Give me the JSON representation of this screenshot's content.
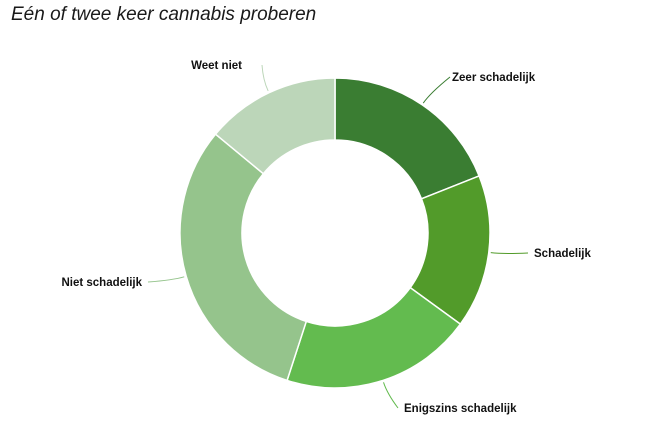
{
  "title": "Eén of twee keer cannabis proberen",
  "chart_data": {
    "type": "pie",
    "donut": true,
    "title": "Eén of twee keer cannabis proberen",
    "slices": [
      {
        "label": "Zeer schadelijk",
        "value": 19,
        "color": "#3a7d32"
      },
      {
        "label": "Schadelijk",
        "value": 16,
        "color": "#529b2a"
      },
      {
        "label": "Enigszins schadelijk",
        "value": 20,
        "color": "#63bb4f"
      },
      {
        "label": "Niet schadelijk",
        "value": 31,
        "color": "#95c48c"
      },
      {
        "label": "Weet niet",
        "value": 14,
        "color": "#bcd6b9"
      }
    ]
  }
}
